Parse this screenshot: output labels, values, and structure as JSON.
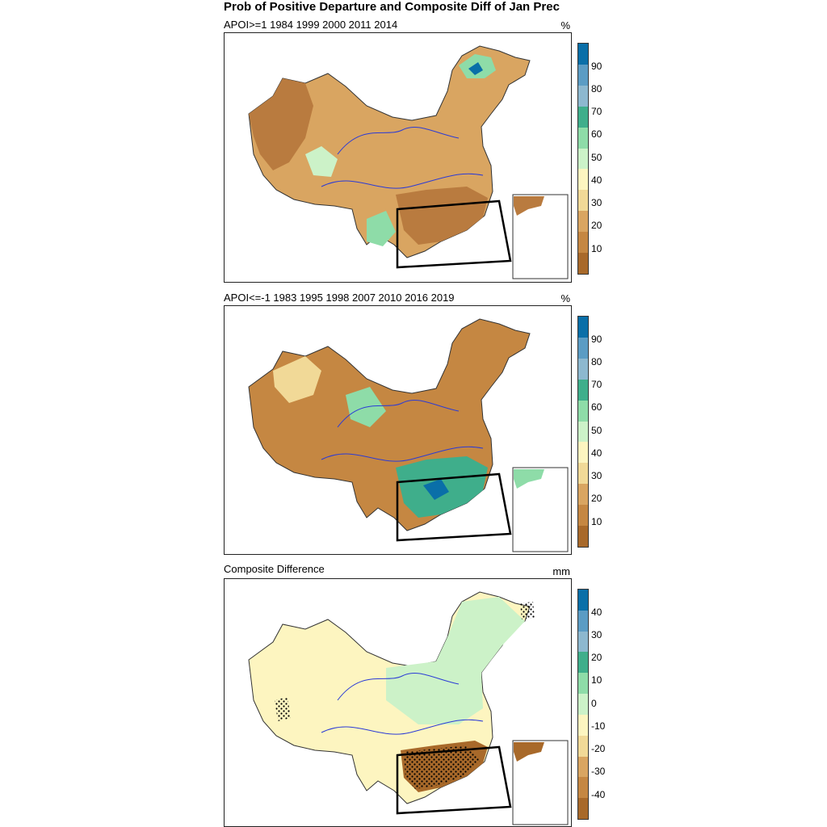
{
  "title": "Prob of Positive Departure and Composite Diff of Jan Prec",
  "panels": [
    {
      "subtitle": "APOI>=1 1984 1999 2000 2011 2014",
      "unit": "%",
      "variant": "dry"
    },
    {
      "subtitle": "APOI<=-1 1983 1995 1998 2007 2010 2016 2019",
      "unit": "%",
      "variant": "wet"
    },
    {
      "subtitle": "Composite Difference",
      "unit": "mm",
      "variant": "diff"
    }
  ],
  "prob_colorbar": {
    "labels": [
      "90",
      "80",
      "70",
      "60",
      "50",
      "40",
      "30",
      "20",
      "10"
    ],
    "colors": [
      "#0a6fa8",
      "#5b9cc4",
      "#8db8cf",
      "#3fae8b",
      "#8edca8",
      "#ccf2c8",
      "#fdf5c0",
      "#f1d997",
      "#d9a561",
      "#c58742",
      "#a8692a"
    ]
  },
  "diff_colorbar": {
    "labels": [
      "40",
      "30",
      "20",
      "10",
      "0",
      "-10",
      "-20",
      "-30",
      "-40"
    ],
    "colors": [
      "#0a6fa8",
      "#5b9cc4",
      "#8db8cf",
      "#3fae8b",
      "#8edca8",
      "#ccf2c8",
      "#fdf5c0",
      "#f1d997",
      "#d9a561",
      "#c58742",
      "#a8692a"
    ]
  },
  "map_colors": {
    "dry_fill": "#b97b3f",
    "mid_fill": "#d9a561",
    "light_fill": "#f1d997",
    "wet_fill": "#8edca8",
    "wetter_fill": "#3fae8b",
    "wettest_fill": "#0a6fa8",
    "pale_fill": "#f7e9b5",
    "river": "#2b3bd6",
    "border": "#333333",
    "box": "#000000"
  }
}
